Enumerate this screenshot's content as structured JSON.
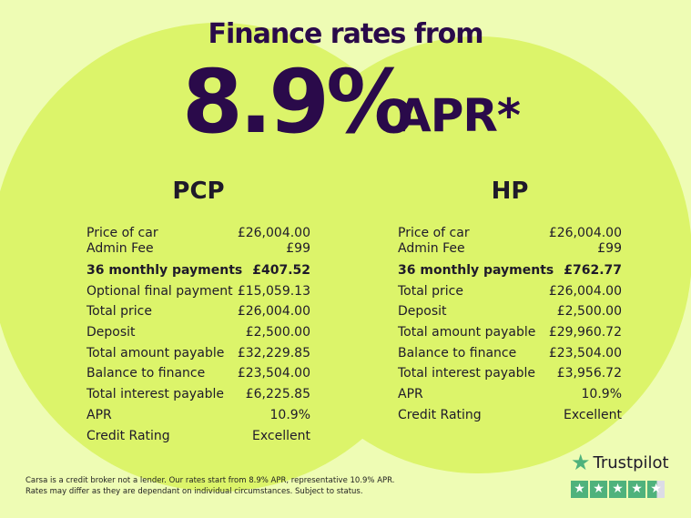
{
  "headline": "Finance rates from",
  "rate": "8.9%",
  "rate_suffix": "APR*",
  "pcp": {
    "title": "PCP",
    "rows": [
      [
        "Price of car",
        "£26,004.00"
      ],
      [
        "Admin Fee",
        "£99"
      ],
      [
        "36 monthly payments",
        "£407.52"
      ],
      [
        "Optional final payment",
        "£15,059.13"
      ],
      [
        "Total price",
        "£26,004.00"
      ],
      [
        "Deposit",
        "£2,500.00"
      ],
      [
        "Total amount payable",
        "£32,229.85"
      ],
      [
        "Balance to finance",
        "£23,504.00"
      ],
      [
        "Total interest payable",
        "£6,225.85"
      ],
      [
        "APR",
        "10.9%"
      ],
      [
        "Credit Rating",
        "Excellent"
      ]
    ]
  },
  "hp": {
    "title": "HP",
    "rows": [
      [
        "Price of car",
        "£26,004.00"
      ],
      [
        "Admin Fee",
        "£99"
      ],
      [
        "36 monthly payments",
        "£762.77"
      ],
      [
        "Total price",
        "£26,004.00"
      ],
      [
        "Deposit",
        "£2,500.00"
      ],
      [
        "Total amount payable",
        "£29,960.72"
      ],
      [
        "Balance to finance",
        "£23,504.00"
      ],
      [
        "Total interest payable",
        "£3,956.72"
      ],
      [
        "APR",
        "10.9%"
      ],
      [
        "Credit Rating",
        "Excellent"
      ]
    ]
  },
  "disclaimer": [
    "Carsa is a credit broker not a lender. Our rates start from 8.9% APR, representative 10.9% APR.",
    "Rates may differ as they are dependant on individual circumstances. Subject to status."
  ],
  "trustpilot": {
    "name": "Trustpilot",
    "rating": 4.5,
    "color": "#4fb27c"
  }
}
